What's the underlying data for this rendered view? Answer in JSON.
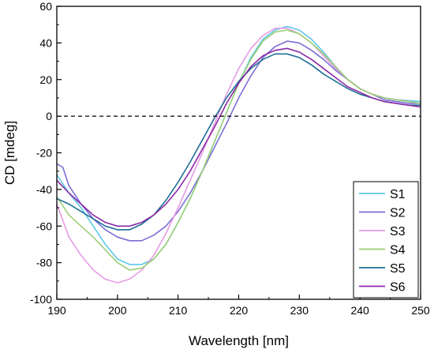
{
  "chart_data": {
    "type": "line",
    "title": "",
    "xlabel": "Wavelength [nm]",
    "ylabel": "CD [mdeg]",
    "xlim": [
      190,
      250
    ],
    "ylim": [
      -100,
      60
    ],
    "xticks": [
      190,
      200,
      210,
      220,
      230,
      240,
      250
    ],
    "yticks": [
      -100,
      -80,
      -60,
      -40,
      -20,
      0,
      20,
      40,
      60
    ],
    "tick_labels_x": [
      "190",
      "200",
      "210",
      "220",
      "230",
      "240",
      "250"
    ],
    "tick_labels_y": [
      "-100",
      "-80",
      "-60",
      "-40",
      "-20",
      "0",
      "20",
      "40",
      "60"
    ],
    "reference_line": {
      "y": 0,
      "style": "dashed"
    },
    "grid": false,
    "legend_position": "bottom-right",
    "series": [
      {
        "name": "S1",
        "color": "#5bc8e8",
        "points": [
          [
            190,
            -32
          ],
          [
            192,
            -42
          ],
          [
            194,
            -50
          ],
          [
            196,
            -60
          ],
          [
            198,
            -70
          ],
          [
            200,
            -78
          ],
          [
            202,
            -81
          ],
          [
            204,
            -81
          ],
          [
            206,
            -78
          ],
          [
            208,
            -70
          ],
          [
            210,
            -58
          ],
          [
            212,
            -45
          ],
          [
            214,
            -30
          ],
          [
            216,
            -14
          ],
          [
            218,
            2
          ],
          [
            220,
            18
          ],
          [
            222,
            32
          ],
          [
            224,
            42
          ],
          [
            226,
            47
          ],
          [
            228,
            49
          ],
          [
            230,
            47
          ],
          [
            232,
            42
          ],
          [
            234,
            35
          ],
          [
            236,
            27
          ],
          [
            238,
            20
          ],
          [
            240,
            15
          ],
          [
            242,
            12
          ],
          [
            244,
            10
          ],
          [
            246,
            9
          ],
          [
            248,
            8.5
          ],
          [
            250,
            8
          ]
        ]
      },
      {
        "name": "S2",
        "color": "#7a6fd6",
        "points": [
          [
            190,
            -26
          ],
          [
            191,
            -28
          ],
          [
            192,
            -38
          ],
          [
            194,
            -48
          ],
          [
            196,
            -56
          ],
          [
            198,
            -62
          ],
          [
            200,
            -66
          ],
          [
            202,
            -68
          ],
          [
            204,
            -68
          ],
          [
            206,
            -65
          ],
          [
            208,
            -60
          ],
          [
            210,
            -52
          ],
          [
            212,
            -42
          ],
          [
            214,
            -30
          ],
          [
            216,
            -17
          ],
          [
            218,
            -4
          ],
          [
            220,
            10
          ],
          [
            222,
            22
          ],
          [
            224,
            32
          ],
          [
            226,
            38
          ],
          [
            228,
            41
          ],
          [
            230,
            40
          ],
          [
            232,
            36
          ],
          [
            234,
            31
          ],
          [
            236,
            25
          ],
          [
            238,
            20
          ],
          [
            240,
            15
          ],
          [
            242,
            12
          ],
          [
            244,
            9
          ],
          [
            246,
            8
          ],
          [
            248,
            7
          ],
          [
            250,
            7
          ]
        ]
      },
      {
        "name": "S3",
        "color": "#e59be4",
        "points": [
          [
            190,
            -48
          ],
          [
            192,
            -66
          ],
          [
            194,
            -76
          ],
          [
            196,
            -84
          ],
          [
            198,
            -89
          ],
          [
            200,
            -91
          ],
          [
            202,
            -89
          ],
          [
            204,
            -84
          ],
          [
            206,
            -76
          ],
          [
            208,
            -64
          ],
          [
            210,
            -50
          ],
          [
            212,
            -35
          ],
          [
            214,
            -20
          ],
          [
            216,
            -4
          ],
          [
            218,
            12
          ],
          [
            220,
            26
          ],
          [
            222,
            37
          ],
          [
            224,
            44
          ],
          [
            226,
            48
          ],
          [
            228,
            48
          ],
          [
            230,
            45
          ],
          [
            232,
            40
          ],
          [
            234,
            33
          ],
          [
            236,
            26
          ],
          [
            238,
            20
          ],
          [
            240,
            15
          ],
          [
            242,
            12
          ],
          [
            244,
            10
          ],
          [
            246,
            9
          ],
          [
            248,
            8
          ],
          [
            250,
            7
          ]
        ]
      },
      {
        "name": "S4",
        "color": "#9ccf75",
        "points": [
          [
            190,
            -44
          ],
          [
            192,
            -54
          ],
          [
            194,
            -60
          ],
          [
            196,
            -66
          ],
          [
            198,
            -73
          ],
          [
            200,
            -80
          ],
          [
            202,
            -84
          ],
          [
            204,
            -83
          ],
          [
            206,
            -78
          ],
          [
            208,
            -70
          ],
          [
            210,
            -58
          ],
          [
            212,
            -45
          ],
          [
            214,
            -30
          ],
          [
            216,
            -14
          ],
          [
            218,
            2
          ],
          [
            220,
            18
          ],
          [
            222,
            31
          ],
          [
            224,
            41
          ],
          [
            226,
            46
          ],
          [
            228,
            47
          ],
          [
            230,
            45
          ],
          [
            232,
            40
          ],
          [
            234,
            34
          ],
          [
            236,
            27
          ],
          [
            238,
            20
          ],
          [
            240,
            15
          ],
          [
            242,
            12
          ],
          [
            244,
            10
          ],
          [
            246,
            9
          ],
          [
            248,
            8
          ],
          [
            250,
            7
          ]
        ]
      },
      {
        "name": "S5",
        "color": "#1e6f96",
        "points": [
          [
            190,
            -45
          ],
          [
            192,
            -48
          ],
          [
            194,
            -52
          ],
          [
            196,
            -56
          ],
          [
            198,
            -60
          ],
          [
            200,
            -62
          ],
          [
            202,
            -62
          ],
          [
            204,
            -59
          ],
          [
            206,
            -54
          ],
          [
            208,
            -46
          ],
          [
            210,
            -36
          ],
          [
            212,
            -25
          ],
          [
            214,
            -13
          ],
          [
            216,
            -1
          ],
          [
            218,
            10
          ],
          [
            220,
            19
          ],
          [
            222,
            26
          ],
          [
            224,
            31
          ],
          [
            226,
            34
          ],
          [
            228,
            34
          ],
          [
            230,
            32
          ],
          [
            232,
            28
          ],
          [
            234,
            23
          ],
          [
            236,
            19
          ],
          [
            238,
            15
          ],
          [
            240,
            12
          ],
          [
            242,
            10
          ],
          [
            244,
            8
          ],
          [
            246,
            7
          ],
          [
            248,
            6
          ],
          [
            250,
            6
          ]
        ]
      },
      {
        "name": "S6",
        "color": "#8b2aa5",
        "points": [
          [
            190,
            -35
          ],
          [
            192,
            -42
          ],
          [
            194,
            -48
          ],
          [
            196,
            -54
          ],
          [
            198,
            -58
          ],
          [
            200,
            -60
          ],
          [
            202,
            -60
          ],
          [
            204,
            -58
          ],
          [
            206,
            -54
          ],
          [
            208,
            -48
          ],
          [
            210,
            -40
          ],
          [
            212,
            -30
          ],
          [
            214,
            -18
          ],
          [
            216,
            -6
          ],
          [
            218,
            7
          ],
          [
            220,
            18
          ],
          [
            222,
            27
          ],
          [
            224,
            33
          ],
          [
            226,
            36
          ],
          [
            228,
            37
          ],
          [
            230,
            35
          ],
          [
            232,
            31
          ],
          [
            234,
            26
          ],
          [
            236,
            21
          ],
          [
            238,
            16
          ],
          [
            240,
            13
          ],
          [
            242,
            10
          ],
          [
            244,
            8
          ],
          [
            246,
            7
          ],
          [
            248,
            6
          ],
          [
            250,
            5
          ]
        ]
      }
    ]
  }
}
